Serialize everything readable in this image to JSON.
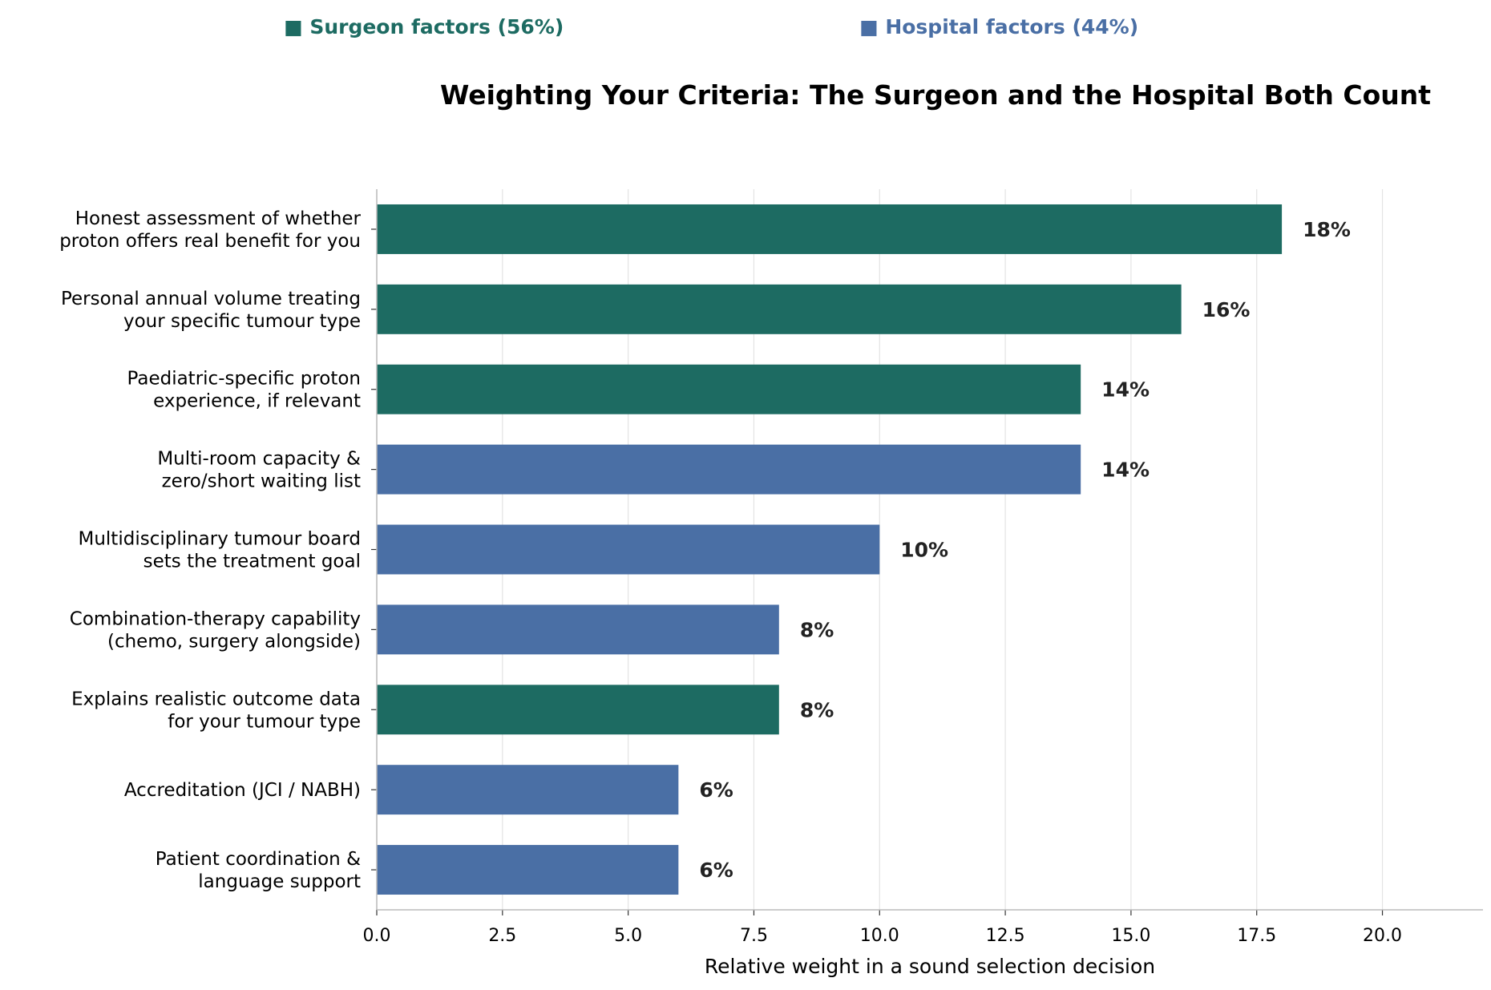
{
  "legend": [
    {
      "marker": "■",
      "label": "Surgeon factors (56%)",
      "color": "#1d6b62"
    },
    {
      "marker": "■",
      "label": "Hospital factors (44%)",
      "color": "#4a6fa5"
    }
  ],
  "chart_data": {
    "type": "bar",
    "orientation": "horizontal",
    "title": "Weighting Your Criteria: The Surgeon and the Hospital Both Count",
    "xlabel": "Relative weight in a sound selection decision",
    "ylabel": "",
    "xlim": [
      0,
      22
    ],
    "xticks": [
      "0.0",
      "2.5",
      "5.0",
      "7.5",
      "10.0",
      "12.5",
      "15.0",
      "17.5",
      "20.0"
    ],
    "grid": "vertical",
    "legend_position": "top",
    "categories": [
      [
        "Honest assessment of whether",
        "proton offers real benefit for you"
      ],
      [
        "Personal annual volume treating",
        "your specific tumour type"
      ],
      [
        "Paediatric-specific proton",
        "experience, if relevant"
      ],
      [
        "Multi-room capacity &",
        "zero/short waiting list"
      ],
      [
        "Multidisciplinary tumour board",
        "sets the treatment goal"
      ],
      [
        "Combination-therapy capability",
        "(chemo, surgery alongside)"
      ],
      [
        "Explains realistic outcome data",
        "for your tumour type"
      ],
      [
        "Accreditation (JCI / NABH)"
      ],
      [
        "Patient coordination &",
        "language support"
      ]
    ],
    "values": [
      18,
      16,
      14,
      14,
      10,
      8,
      8,
      6,
      6
    ],
    "value_labels": [
      "18%",
      "16%",
      "14%",
      "14%",
      "10%",
      "8%",
      "8%",
      "6%",
      "6%"
    ],
    "groups": [
      "Surgeon factors",
      "Surgeon factors",
      "Surgeon factors",
      "Hospital factors",
      "Hospital factors",
      "Hospital factors",
      "Surgeon factors",
      "Hospital factors",
      "Hospital factors"
    ],
    "colors": {
      "Surgeon factors": "#1d6b62",
      "Hospital factors": "#4a6fa5"
    }
  }
}
